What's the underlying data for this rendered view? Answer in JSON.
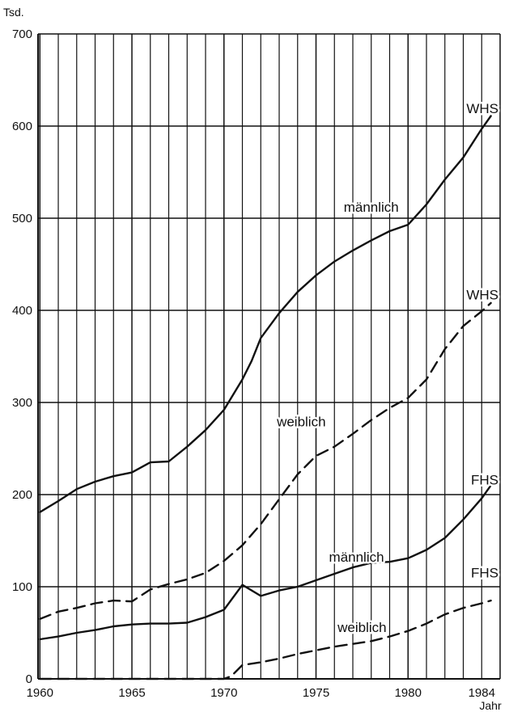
{
  "chart_data": {
    "type": "line",
    "title": "",
    "xlabel": "Jahr",
    "ylabel": "Tsd.",
    "xlim": [
      1959.9,
      1985.0
    ],
    "ylim": [
      0,
      700
    ],
    "x_ticks": [
      "1960",
      "1965",
      "1970",
      "1975",
      "1980",
      "1984"
    ],
    "y_ticks": [
      "0",
      "100",
      "200",
      "300",
      "400",
      "500",
      "600",
      "700"
    ],
    "grid": true,
    "series": [
      {
        "name": "WHS männlich",
        "style": "solid",
        "points": [
          [
            1960,
            181
          ],
          [
            1961,
            193
          ],
          [
            1962,
            206
          ],
          [
            1963,
            214
          ],
          [
            1964,
            220
          ],
          [
            1965,
            224
          ],
          [
            1966,
            235
          ],
          [
            1967,
            236
          ],
          [
            1968,
            252
          ],
          [
            1969,
            270
          ],
          [
            1970,
            292
          ],
          [
            1971,
            325
          ],
          [
            1971.5,
            345
          ],
          [
            1972,
            370
          ],
          [
            1973,
            397
          ],
          [
            1974,
            420
          ],
          [
            1975,
            438
          ],
          [
            1976,
            453
          ],
          [
            1977,
            465
          ],
          [
            1978,
            476
          ],
          [
            1979,
            486
          ],
          [
            1980,
            493
          ],
          [
            1981,
            515
          ],
          [
            1982,
            542
          ],
          [
            1983,
            566
          ],
          [
            1984,
            597
          ],
          [
            1984.5,
            611
          ]
        ]
      },
      {
        "name": "WHS weiblich",
        "style": "dashed",
        "points": [
          [
            1960,
            65
          ],
          [
            1961,
            73
          ],
          [
            1962,
            77
          ],
          [
            1963,
            82
          ],
          [
            1964,
            85
          ],
          [
            1965,
            84
          ],
          [
            1966,
            97
          ],
          [
            1967,
            103
          ],
          [
            1968,
            108
          ],
          [
            1969,
            115
          ],
          [
            1970,
            128
          ],
          [
            1971,
            145
          ],
          [
            1972,
            168
          ],
          [
            1973,
            195
          ],
          [
            1974,
            222
          ],
          [
            1975,
            242
          ],
          [
            1976,
            252
          ],
          [
            1977,
            266
          ],
          [
            1978,
            281
          ],
          [
            1979,
            294
          ],
          [
            1980,
            305
          ],
          [
            1981,
            325
          ],
          [
            1982,
            358
          ],
          [
            1983,
            383
          ],
          [
            1984,
            399
          ],
          [
            1984.5,
            408
          ]
        ]
      },
      {
        "name": "FHS männlich",
        "style": "solid",
        "points": [
          [
            1960,
            43
          ],
          [
            1961,
            46
          ],
          [
            1962,
            50
          ],
          [
            1963,
            53
          ],
          [
            1964,
            57
          ],
          [
            1965,
            59
          ],
          [
            1966,
            60
          ],
          [
            1967,
            60
          ],
          [
            1968,
            61
          ],
          [
            1969,
            67
          ],
          [
            1970,
            75
          ],
          [
            1971,
            102
          ],
          [
            1972,
            90
          ],
          [
            1973,
            96
          ],
          [
            1974,
            100
          ],
          [
            1975,
            107
          ],
          [
            1976,
            114
          ],
          [
            1977,
            121
          ],
          [
            1978,
            126
          ],
          [
            1979,
            127
          ],
          [
            1980,
            131
          ],
          [
            1981,
            140
          ],
          [
            1982,
            153
          ],
          [
            1983,
            173
          ],
          [
            1984,
            196
          ],
          [
            1984.5,
            210
          ]
        ]
      },
      {
        "name": "FHS weiblich",
        "style": "dashed",
        "points": [
          [
            1960,
            0
          ],
          [
            1961,
            0
          ],
          [
            1962,
            0
          ],
          [
            1963,
            0
          ],
          [
            1964,
            0
          ],
          [
            1965,
            0
          ],
          [
            1966,
            0
          ],
          [
            1967,
            0
          ],
          [
            1968,
            0
          ],
          [
            1969,
            0
          ],
          [
            1970,
            0
          ],
          [
            1970.4,
            3
          ],
          [
            1971,
            15
          ],
          [
            1972,
            18
          ],
          [
            1973,
            22
          ],
          [
            1974,
            27
          ],
          [
            1975,
            31
          ],
          [
            1976,
            35
          ],
          [
            1977,
            38
          ],
          [
            1978,
            41
          ],
          [
            1979,
            46
          ],
          [
            1980,
            52
          ],
          [
            1981,
            60
          ],
          [
            1982,
            70
          ],
          [
            1983,
            77
          ],
          [
            1984,
            82
          ],
          [
            1984.5,
            85
          ]
        ]
      }
    ],
    "annotations": [
      {
        "text": "WHS",
        "x": 1984.2,
        "y": 614
      },
      {
        "text": "männlich",
        "x": 1978.0,
        "y": 507
      },
      {
        "text": "WHS",
        "x": 1984.2,
        "y": 412
      },
      {
        "text": "weiblich",
        "x": 1974.2,
        "y": 274
      },
      {
        "text": "FHS",
        "x": 1984.2,
        "y": 211
      },
      {
        "text": "männlich",
        "x": 1977.2,
        "y": 127
      },
      {
        "text": "FHS",
        "x": 1984.2,
        "y": 110
      },
      {
        "text": "weiblich",
        "x": 1977.5,
        "y": 51
      }
    ]
  }
}
